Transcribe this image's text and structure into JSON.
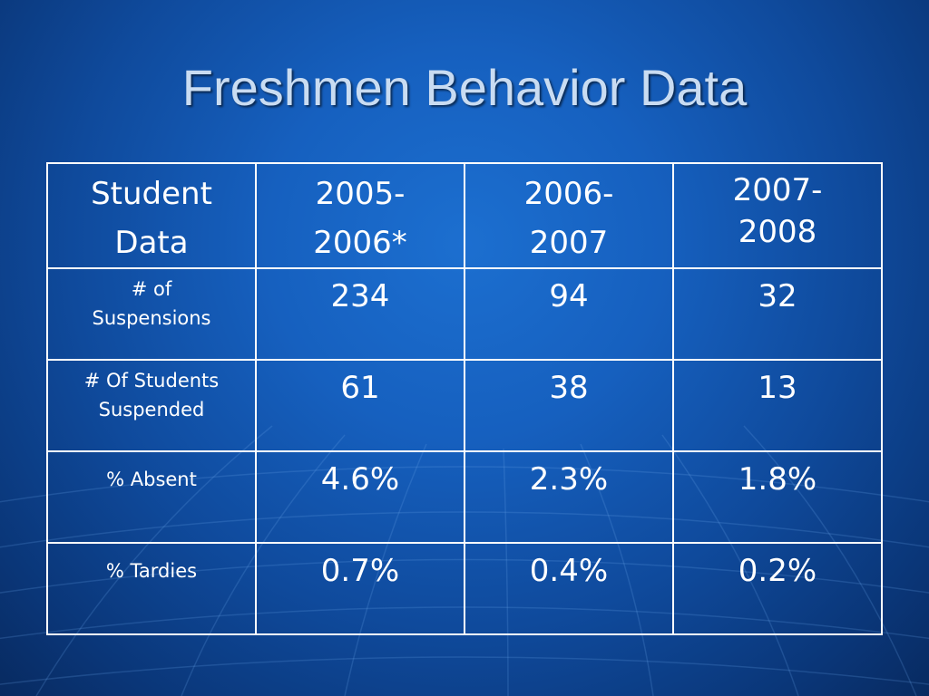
{
  "slide": {
    "title": "Freshmen Behavior Data"
  },
  "table": {
    "headers": [
      "Student Data",
      "2005-2006*",
      "2006-2007",
      "2007-2008"
    ],
    "header_lines": [
      [
        "Student",
        "Data"
      ],
      [
        "2005-",
        "2006*"
      ],
      [
        "2006-",
        "2007"
      ],
      [
        "2007-",
        "2008"
      ]
    ],
    "rows": [
      {
        "label": "# of Suspensions",
        "label_lines": [
          "# of",
          "Suspensions"
        ],
        "values": [
          "234",
          "94",
          "32"
        ]
      },
      {
        "label": "# Of Students Suspended",
        "label_lines": [
          "# Of Students",
          "Suspended"
        ],
        "values": [
          "61",
          "38",
          "13"
        ]
      },
      {
        "label": "% Absent",
        "label_lines": [
          "% Absent"
        ],
        "values": [
          "4.6%",
          "2.3%",
          "1.8%"
        ]
      },
      {
        "label": "% Tardies",
        "label_lines": [
          "% Tardies"
        ],
        "values": [
          "0.7%",
          "0.4%",
          "0.2%"
        ]
      }
    ]
  },
  "colors": {
    "background": "#1660bf",
    "title_text": "#c9dcf2",
    "table_text": "#ffffff",
    "table_border": "#ffffff"
  }
}
